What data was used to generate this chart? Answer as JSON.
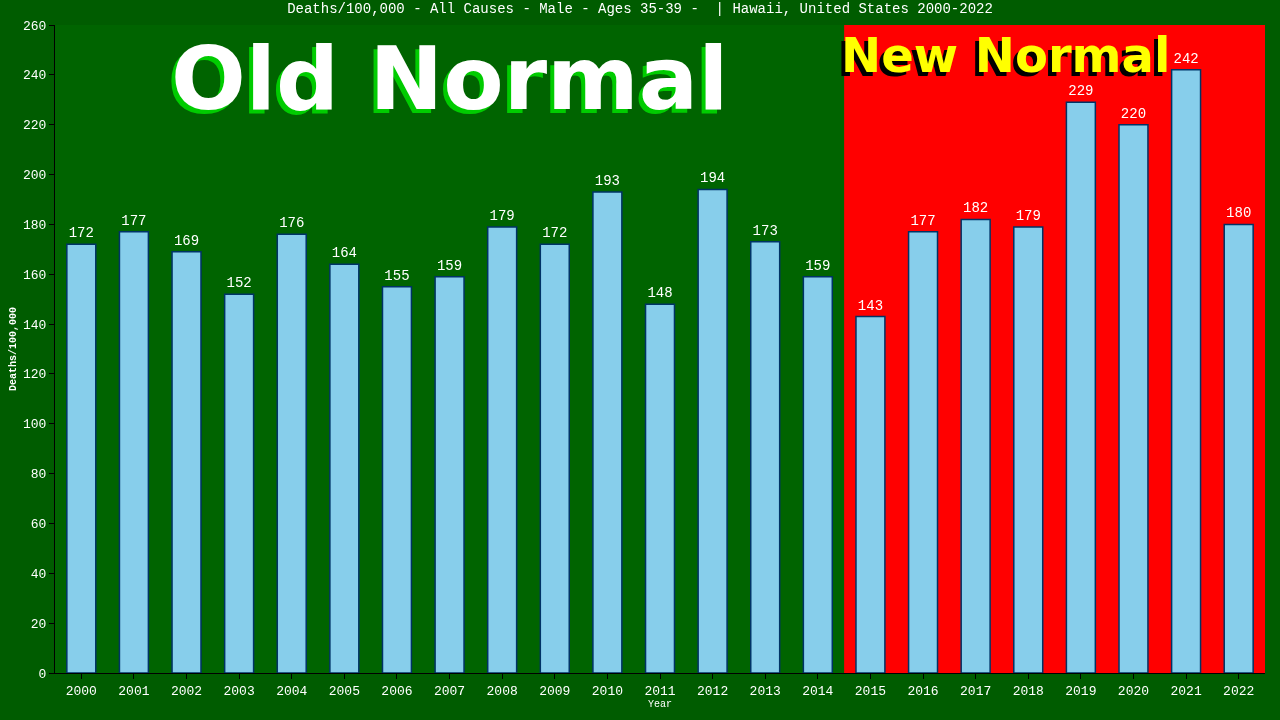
{
  "chart_data": {
    "type": "bar",
    "title": "Deaths/100,000 - All Causes - Male - Ages 35-39 -  | Hawaii, United States 2000-2022",
    "xlabel": "Year",
    "ylabel": "Deaths/100,000",
    "categories": [
      "2000",
      "2001",
      "2002",
      "2003",
      "2004",
      "2005",
      "2006",
      "2007",
      "2008",
      "2009",
      "2010",
      "2011",
      "2012",
      "2013",
      "2014",
      "2015",
      "2016",
      "2017",
      "2018",
      "2019",
      "2020",
      "2021",
      "2022"
    ],
    "values": [
      172,
      177,
      169,
      152,
      176,
      164,
      155,
      159,
      179,
      172,
      193,
      148,
      194,
      173,
      159,
      143,
      177,
      182,
      179,
      229,
      220,
      242,
      180
    ],
    "color": "#87ceeb",
    "ylim": [
      0,
      260
    ],
    "yticks": [
      0,
      20,
      40,
      60,
      80,
      100,
      120,
      140,
      160,
      180,
      200,
      220,
      240,
      260
    ],
    "grid": false,
    "data_labels": true,
    "bands": [
      {
        "axis": "x",
        "from": "2000",
        "to": "2014",
        "label": "Old Normal",
        "color": "#006400"
      },
      {
        "axis": "x",
        "from": "2015",
        "to": "2022",
        "label": "New Normal",
        "color": "#ff0000"
      }
    ]
  }
}
